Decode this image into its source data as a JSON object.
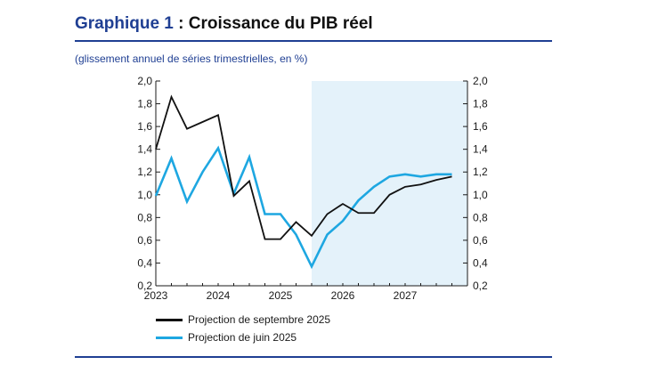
{
  "title": {
    "prefix": "Graphique 1",
    "text": " : Croissance du PIB réel"
  },
  "subtitle": "(glissement annuel de séries trimestrielles, en %)",
  "colors": {
    "brand": "#1f3f93",
    "projection_band": "#e4f2fa"
  },
  "chart_data": {
    "type": "line",
    "x": [
      "2023 T1",
      "2023 T2",
      "2023 T3",
      "2023 T4",
      "2024 T1",
      "2024 T2",
      "2024 T3",
      "2024 T4",
      "2025 T1",
      "2025 T2",
      "2025 T3",
      "2025 T4",
      "2026 T1",
      "2026 T2",
      "2026 T3",
      "2026 T4",
      "2027 T1",
      "2027 T2",
      "2027 T3",
      "2027 T4"
    ],
    "x_tick_labels": [
      "2023",
      "2024",
      "2025",
      "2026",
      "2027"
    ],
    "ylim": [
      0.2,
      2.0
    ],
    "y_tick_labels": [
      "2,0",
      "1,8",
      "1,6",
      "1,4",
      "1,2",
      "1,0",
      "0,8",
      "0,6",
      "0,4",
      "0,2"
    ],
    "y_axis_both_sides": true,
    "grid": false,
    "projection_start": "2025 T3",
    "legend_position": "bottom-left",
    "series": [
      {
        "name": "Projection de septembre 2025",
        "color": "#111111",
        "values": [
          1.4,
          1.86,
          1.58,
          1.64,
          1.7,
          0.99,
          1.12,
          0.61,
          0.61,
          0.76,
          0.64,
          0.83,
          0.92,
          0.84,
          0.84,
          1.0,
          1.07,
          1.09,
          1.13,
          1.16
        ]
      },
      {
        "name": "Projection de juin 2025",
        "color": "#1ea7e1",
        "values": [
          0.99,
          1.32,
          0.94,
          1.2,
          1.41,
          1.01,
          1.33,
          0.83,
          0.83,
          0.65,
          0.37,
          0.65,
          0.77,
          0.95,
          1.07,
          1.16,
          1.18,
          1.16,
          1.18,
          1.18
        ]
      }
    ]
  }
}
